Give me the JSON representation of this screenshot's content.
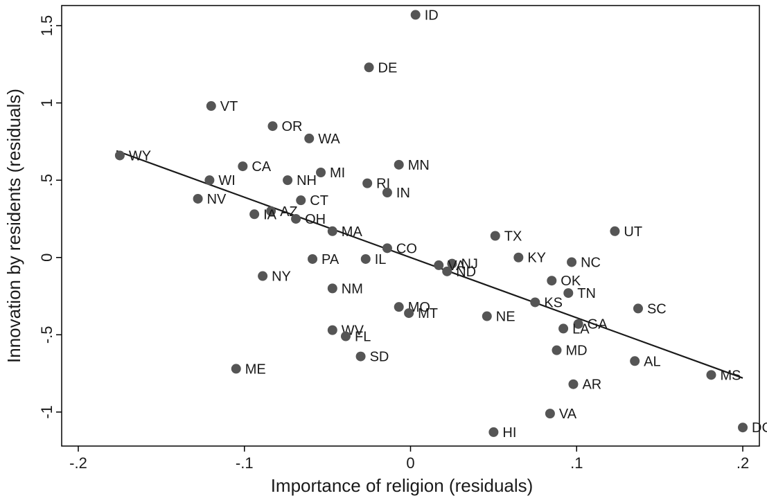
{
  "chart_data": {
    "type": "scatter",
    "xlabel": "Importance of religion (residuals)",
    "ylabel": "Innovation by residents (residuals)",
    "xlim": [
      -0.21,
      0.21
    ],
    "ylim": [
      -1.22,
      1.63
    ],
    "x_ticks": [
      -0.2,
      -0.1,
      0,
      0.1,
      0.2
    ],
    "x_tick_labels": [
      "-.2",
      "-.1",
      "0",
      ".1",
      ".2"
    ],
    "y_ticks": [
      -1,
      -0.5,
      0,
      0.5,
      1,
      1.5
    ],
    "y_tick_labels": [
      "-1",
      "-.5",
      "0",
      ".5",
      "1",
      "1.5"
    ],
    "grid": false,
    "legend": "none",
    "colors": {
      "marker": "#555555",
      "fit_line": "#1a1a1a",
      "axis": "#000000"
    },
    "points": [
      {
        "label": "ID",
        "x": 0.003,
        "y": 1.57
      },
      {
        "label": "DE",
        "x": -0.025,
        "y": 1.23
      },
      {
        "label": "VT",
        "x": -0.12,
        "y": 0.98
      },
      {
        "label": "OR",
        "x": -0.083,
        "y": 0.85
      },
      {
        "label": "WA",
        "x": -0.061,
        "y": 0.77
      },
      {
        "label": "WY",
        "x": -0.175,
        "y": 0.66
      },
      {
        "label": "MN",
        "x": -0.007,
        "y": 0.6
      },
      {
        "label": "CA",
        "x": -0.101,
        "y": 0.59
      },
      {
        "label": "MI",
        "x": -0.054,
        "y": 0.55
      },
      {
        "label": "WI",
        "x": -0.121,
        "y": 0.5
      },
      {
        "label": "NH",
        "x": -0.074,
        "y": 0.5
      },
      {
        "label": "RI",
        "x": -0.026,
        "y": 0.48
      },
      {
        "label": "IN",
        "x": -0.014,
        "y": 0.42
      },
      {
        "label": "NV",
        "x": -0.128,
        "y": 0.38
      },
      {
        "label": "CT",
        "x": -0.066,
        "y": 0.37
      },
      {
        "label": "AZ",
        "x": -0.084,
        "y": 0.3
      },
      {
        "label": "IA",
        "x": -0.094,
        "y": 0.28
      },
      {
        "label": "OH",
        "x": -0.069,
        "y": 0.25
      },
      {
        "label": "MA",
        "x": -0.047,
        "y": 0.17
      },
      {
        "label": "UT",
        "x": 0.123,
        "y": 0.17
      },
      {
        "label": "TX",
        "x": 0.051,
        "y": 0.14
      },
      {
        "label": "CO",
        "x": -0.014,
        "y": 0.06
      },
      {
        "label": "KY",
        "x": 0.065,
        "y": 0.0
      },
      {
        "label": "PA",
        "x": -0.059,
        "y": -0.01
      },
      {
        "label": "IL",
        "x": -0.027,
        "y": -0.01
      },
      {
        "label": "NC",
        "x": 0.097,
        "y": -0.03
      },
      {
        "label": "NJ",
        "x": 0.025,
        "y": -0.04
      },
      {
        "label": "VA",
        "x": 0.017,
        "y": -0.05
      },
      {
        "label": "ND",
        "x": 0.022,
        "y": -0.09
      },
      {
        "label": "NY",
        "x": -0.089,
        "y": -0.12
      },
      {
        "label": "OK",
        "x": 0.085,
        "y": -0.15
      },
      {
        "label": "NM",
        "x": -0.047,
        "y": -0.2
      },
      {
        "label": "TN",
        "x": 0.095,
        "y": -0.23
      },
      {
        "label": "KS",
        "x": 0.075,
        "y": -0.29
      },
      {
        "label": "MO",
        "x": -0.007,
        "y": -0.32
      },
      {
        "label": "SC",
        "x": 0.137,
        "y": -0.33
      },
      {
        "label": "MT",
        "x": -0.001,
        "y": -0.36
      },
      {
        "label": "NE",
        "x": 0.046,
        "y": -0.38
      },
      {
        "label": "GA",
        "x": 0.101,
        "y": -0.43
      },
      {
        "label": "LA",
        "x": 0.092,
        "y": -0.46
      },
      {
        "label": "WV",
        "x": -0.047,
        "y": -0.47
      },
      {
        "label": "FL",
        "x": -0.039,
        "y": -0.51
      },
      {
        "label": "MD",
        "x": 0.088,
        "y": -0.6
      },
      {
        "label": "SD",
        "x": -0.03,
        "y": -0.64
      },
      {
        "label": "AL",
        "x": 0.135,
        "y": -0.67
      },
      {
        "label": "ME",
        "x": -0.105,
        "y": -0.72
      },
      {
        "label": "MS",
        "x": 0.181,
        "y": -0.76
      },
      {
        "label": "AR",
        "x": 0.098,
        "y": -0.82
      },
      {
        "label": "VA",
        "x": 0.084,
        "y": -1.01
      },
      {
        "label": "DC",
        "x": 0.2,
        "y": -1.1
      },
      {
        "label": "HI",
        "x": 0.05,
        "y": -1.13
      }
    ],
    "fit_line": {
      "x": [
        -0.177,
        0.2
      ],
      "y": [
        0.69,
        -0.78
      ]
    }
  }
}
